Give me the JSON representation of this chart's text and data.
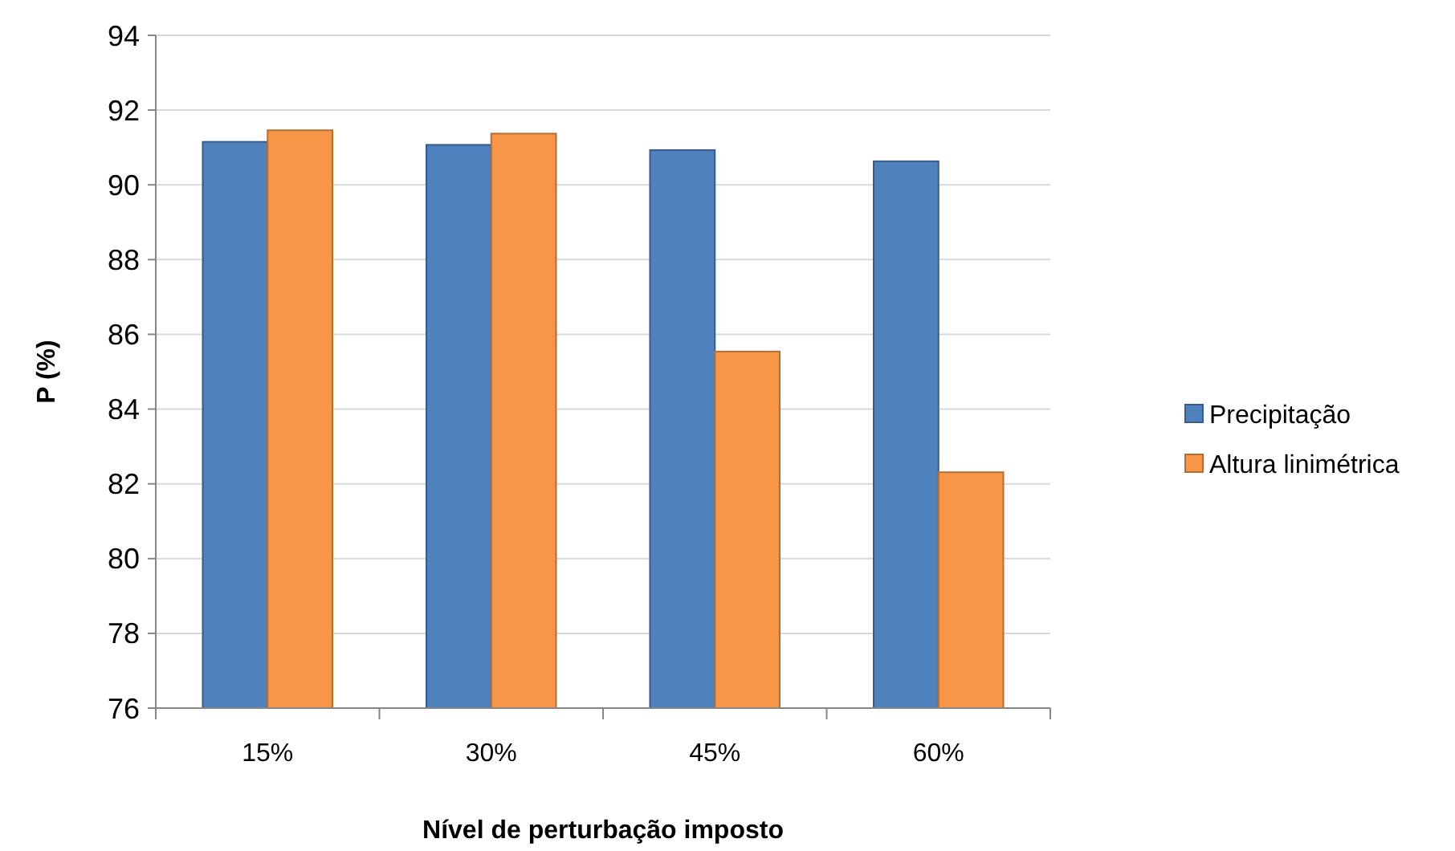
{
  "chart_data": {
    "type": "bar",
    "xlabel": "Nível de perturbação imposto",
    "ylabel": "P (%)",
    "categories": [
      "15%",
      "30%",
      "45%",
      "60%"
    ],
    "series": [
      {
        "name": "Precipitação",
        "color": "#4f81bd",
        "values": [
          91.15,
          91.07,
          90.93,
          90.63
        ]
      },
      {
        "name": "Altura linimétrica",
        "color": "#f79646",
        "values": [
          91.46,
          91.37,
          85.54,
          82.31
        ]
      }
    ],
    "ylim": [
      76,
      94
    ],
    "yticks": [
      76,
      78,
      80,
      82,
      84,
      86,
      88,
      90,
      92,
      94
    ],
    "grid": "y",
    "legend": "right"
  }
}
